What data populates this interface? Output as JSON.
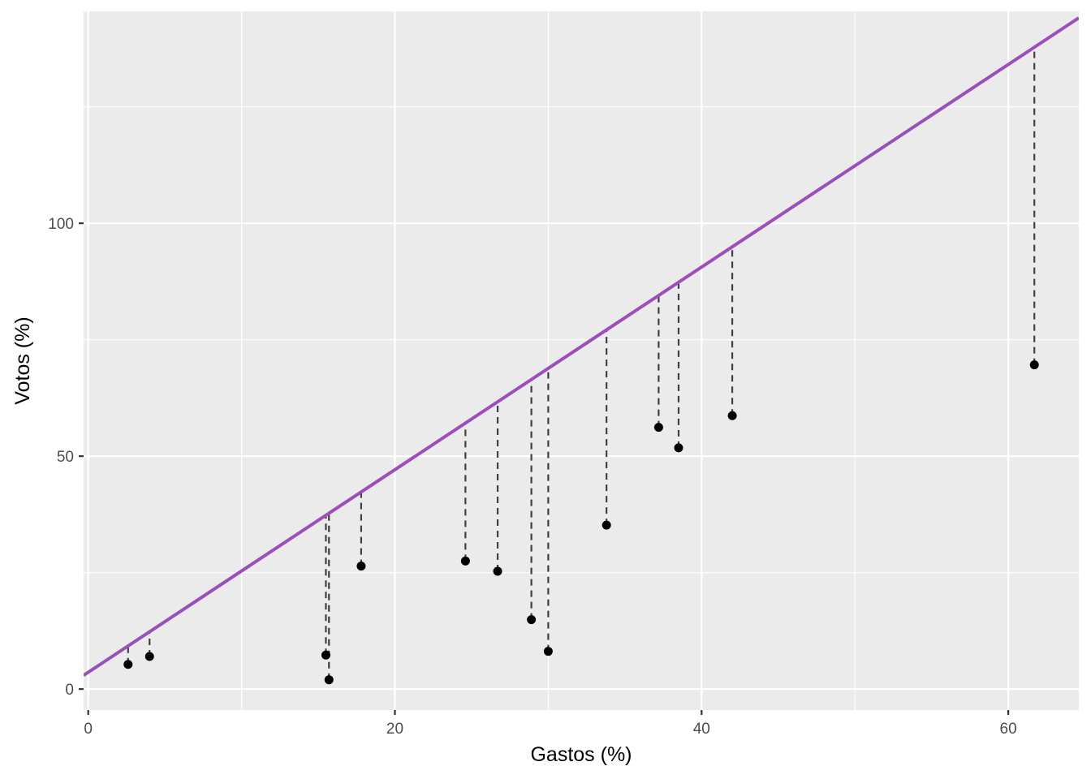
{
  "chart_data": {
    "type": "scatter",
    "title": "",
    "xlabel": "Gastos (%)",
    "ylabel": "Votos (%)",
    "xlim": [
      -0.3,
      64.6
    ],
    "ylim": [
      -4.5,
      145.5
    ],
    "x_ticks": [
      0,
      20,
      40,
      60
    ],
    "y_ticks": [
      0,
      50,
      100
    ],
    "x_minor_gridlines": [
      10,
      30,
      50
    ],
    "y_minor_gridlines": [
      25,
      75,
      125
    ],
    "grid": true,
    "background_color": "#ebebeb",
    "gridline_color": "#ffffff",
    "point_color": "#000000",
    "line_color": "#9b4fba",
    "segment_color": "#404040",
    "fit_line": {
      "intercept": 3.6,
      "slope": 2.175
    },
    "points": [
      {
        "x": 2.6,
        "y": 5.3
      },
      {
        "x": 4.0,
        "y": 7.0
      },
      {
        "x": 15.5,
        "y": 7.3
      },
      {
        "x": 15.7,
        "y": 2.0
      },
      {
        "x": 17.8,
        "y": 26.4
      },
      {
        "x": 24.6,
        "y": 27.5
      },
      {
        "x": 26.7,
        "y": 25.3
      },
      {
        "x": 28.9,
        "y": 14.9
      },
      {
        "x": 30.0,
        "y": 8.1
      },
      {
        "x": 33.8,
        "y": 35.2
      },
      {
        "x": 37.2,
        "y": 56.2
      },
      {
        "x": 38.5,
        "y": 51.8
      },
      {
        "x": 42.0,
        "y": 58.7
      },
      {
        "x": 61.7,
        "y": 69.6
      }
    ]
  }
}
